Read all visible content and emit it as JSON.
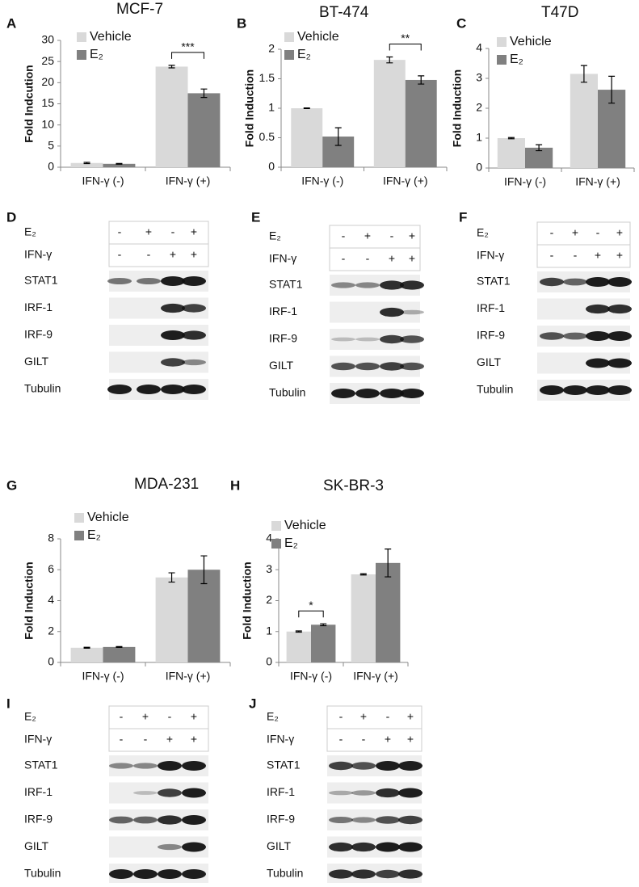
{
  "chart_data": [
    {
      "type": "bar",
      "letter": "A",
      "title": "MCF-7",
      "y_label": "Fold Indcution",
      "categories": [
        "IFN-γ (-)",
        "IFN-γ (+)"
      ],
      "series": [
        {
          "name": "Vehicle",
          "color": "#d9d9d9",
          "values": [
            1,
            23.8
          ],
          "errors": [
            0.15,
            0.3
          ]
        },
        {
          "name": "E₂",
          "color": "#808080",
          "values": [
            0.8,
            17.5
          ],
          "errors": [
            0.1,
            1
          ]
        }
      ],
      "ylim": [
        0,
        30
      ],
      "yticks": [
        0,
        5,
        10,
        15,
        20,
        25,
        30
      ],
      "annotations": [
        {
          "text": "***",
          "category": "IFN-γ (+)"
        }
      ]
    },
    {
      "type": "bar",
      "letter": "B",
      "title": "BT-474",
      "y_label": "Fold Induction",
      "categories": [
        "IFN-γ (-)",
        "IFN-γ (+)"
      ],
      "series": [
        {
          "name": "Vehicle",
          "color": "#d9d9d9",
          "values": [
            1,
            1.82
          ],
          "errors": [
            0.005,
            0.05
          ]
        },
        {
          "name": "E₂",
          "color": "#808080",
          "values": [
            0.52,
            1.48
          ],
          "errors": [
            0.15,
            0.07
          ]
        }
      ],
      "ylim": [
        0,
        2
      ],
      "yticks": [
        0,
        0.5,
        1,
        1.5,
        2
      ],
      "annotations": [
        {
          "text": "**",
          "category": "IFN-γ (+)"
        }
      ]
    },
    {
      "type": "bar",
      "letter": "C",
      "title": "T47D",
      "y_label": "Fold Induction",
      "categories": [
        "IFN-γ (-)",
        "IFN-γ (+)"
      ],
      "series": [
        {
          "name": "Vehicle",
          "color": "#d9d9d9",
          "values": [
            1,
            3.15
          ],
          "errors": [
            0.02,
            0.28
          ]
        },
        {
          "name": "E₂",
          "color": "#808080",
          "values": [
            0.68,
            2.62
          ],
          "errors": [
            0.1,
            0.45
          ]
        }
      ],
      "ylim": [
        0,
        4
      ],
      "yticks": [
        0,
        1,
        2,
        3,
        4
      ],
      "annotations": []
    },
    {
      "type": "bar",
      "letter": "G",
      "title": "MDA-231",
      "y_label": "Fold Induction",
      "categories": [
        "IFN-γ (-)",
        "IFN-γ (+)"
      ],
      "series": [
        {
          "name": "Vehicle",
          "color": "#d9d9d9",
          "values": [
            0.95,
            5.5
          ],
          "errors": [
            0.03,
            0.3
          ]
        },
        {
          "name": "E₂",
          "color": "#808080",
          "values": [
            1,
            6
          ],
          "errors": [
            0.03,
            0.9
          ]
        }
      ],
      "ylim": [
        0,
        8
      ],
      "yticks": [
        0,
        2,
        4,
        6,
        8
      ],
      "annotations": []
    },
    {
      "type": "bar",
      "letter": "H",
      "title": "SK-BR-3",
      "y_label": "Fold Induction",
      "categories": [
        "IFN-γ (-)",
        "IFN-γ (+)"
      ],
      "series": [
        {
          "name": "Vehicle",
          "color": "#d9d9d9",
          "values": [
            1,
            2.85
          ],
          "errors": [
            0.02,
            0.02
          ]
        },
        {
          "name": "E₂",
          "color": "#808080",
          "values": [
            1.22,
            3.22
          ],
          "errors": [
            0.03,
            0.45
          ]
        }
      ],
      "ylim": [
        0,
        4
      ],
      "yticks": [
        0,
        1,
        2,
        3,
        4
      ],
      "annotations": [
        {
          "text": "*",
          "category": "IFN-γ (-)"
        }
      ]
    }
  ],
  "blots": [
    {
      "letter": "D",
      "treatments": [
        {
          "label": "E₂",
          "signs": [
            "-",
            "+",
            "-",
            "+"
          ]
        },
        {
          "label": "IFN-γ",
          "signs": [
            "-",
            "-",
            "+",
            "+"
          ]
        }
      ],
      "proteins": [
        "STAT1",
        "IRF-1",
        "IRF-9",
        "GILT",
        "Tubulin"
      ]
    },
    {
      "letter": "E",
      "treatments": [
        {
          "label": "E₂",
          "signs": [
            "-",
            "+",
            "-",
            "+"
          ]
        },
        {
          "label": "IFN-γ",
          "signs": [
            "-",
            "-",
            "+",
            "+"
          ]
        }
      ],
      "proteins": [
        "STAT1",
        "IRF-1",
        "IRF-9",
        "GILT",
        "Tubulin"
      ]
    },
    {
      "letter": "F",
      "treatments": [
        {
          "label": "E₂",
          "signs": [
            "-",
            "+",
            "-",
            "+"
          ]
        },
        {
          "label": "IFN-γ",
          "signs": [
            "-",
            "-",
            "+",
            "+"
          ]
        }
      ],
      "proteins": [
        "STAT1",
        "IRF-1",
        "IRF-9",
        "GILT",
        "Tubulin"
      ]
    },
    {
      "letter": "I",
      "treatments": [
        {
          "label": "E₂",
          "signs": [
            "-",
            "+",
            "-",
            "+"
          ]
        },
        {
          "label": "IFN-γ",
          "signs": [
            "-",
            "-",
            "+",
            "+"
          ]
        }
      ],
      "proteins": [
        "STAT1",
        "IRF-1",
        "IRF-9",
        "GILT",
        "Tubulin"
      ]
    },
    {
      "letter": "J",
      "treatments": [
        {
          "label": "E₂",
          "signs": [
            "-",
            "+",
            "-",
            "+"
          ]
        },
        {
          "label": "IFN-γ",
          "signs": [
            "-",
            "-",
            "+",
            "+"
          ]
        }
      ],
      "proteins": [
        "STAT1",
        "IRF-1",
        "IRF-9",
        "GILT",
        "Tubulin"
      ]
    }
  ]
}
